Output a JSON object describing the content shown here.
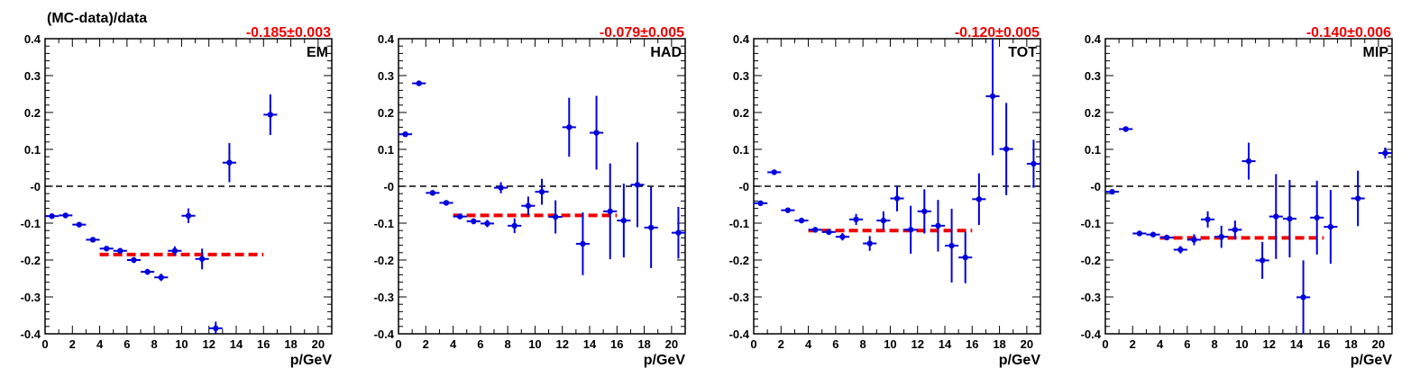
{
  "figure": {
    "ylabel": "(MC-data)/data"
  },
  "colors": {
    "points": "#0000dd",
    "fit": "#ee0000",
    "zero_line": "#000000"
  },
  "axes": {
    "x_ticks": [
      0,
      2,
      4,
      6,
      8,
      10,
      12,
      14,
      16,
      18,
      20
    ],
    "y_ticks": [
      0.4,
      0.3,
      0.2,
      0.1,
      0.0,
      -0.1,
      -0.2,
      -0.3,
      -0.4
    ],
    "y_tick_labels": [
      "0.4",
      "0.3",
      "0.2",
      "0.1",
      "-0",
      "-0.1",
      "-0.2",
      "-0.3",
      "-0.4"
    ]
  },
  "chart_data": [
    {
      "type": "scatter",
      "label": "EM",
      "fit_text": "-0.185±0.003",
      "fit": {
        "value": -0.185,
        "error": 0.003,
        "x_range": [
          4,
          16
        ]
      },
      "xlabel": "p/GeV",
      "ylabel": "(MC-data)/data",
      "xlim": [
        0,
        21
      ],
      "ylim": [
        -0.4,
        0.4
      ],
      "zero_line": true,
      "points": [
        {
          "x": 0.5,
          "y": -0.081,
          "yerr": 0.005
        },
        {
          "x": 1.5,
          "y": -0.079,
          "yerr": 0.005
        },
        {
          "x": 2.5,
          "y": -0.104,
          "yerr": 0.005
        },
        {
          "x": 3.5,
          "y": -0.145,
          "yerr": 0.005
        },
        {
          "x": 4.5,
          "y": -0.169,
          "yerr": 0.006
        },
        {
          "x": 5.5,
          "y": -0.175,
          "yerr": 0.007
        },
        {
          "x": 6.5,
          "y": -0.2,
          "yerr": 0.008
        },
        {
          "x": 7.5,
          "y": -0.232,
          "yerr": 0.008
        },
        {
          "x": 8.5,
          "y": -0.247,
          "yerr": 0.01
        },
        {
          "x": 9.5,
          "y": -0.175,
          "yerr": 0.012
        },
        {
          "x": 10.5,
          "y": -0.08,
          "yerr": 0.02
        },
        {
          "x": 11.5,
          "y": -0.197,
          "yerr": 0.028
        },
        {
          "x": 12.5,
          "y": -0.385,
          "yerr": 0.018
        },
        {
          "x": 13.5,
          "y": 0.064,
          "yerr": 0.053
        },
        {
          "x": 16.5,
          "y": 0.194,
          "yerr": 0.055
        }
      ]
    },
    {
      "type": "scatter",
      "label": "HAD",
      "fit_text": "-0.079±0.005",
      "fit": {
        "value": -0.079,
        "error": 0.005,
        "x_range": [
          4,
          16
        ]
      },
      "xlabel": "p/GeV",
      "xlim": [
        0,
        21
      ],
      "ylim": [
        -0.4,
        0.4
      ],
      "zero_line": true,
      "points": [
        {
          "x": 0.5,
          "y": 0.141,
          "yerr": 0.006
        },
        {
          "x": 1.5,
          "y": 0.279,
          "yerr": 0.005
        },
        {
          "x": 2.5,
          "y": -0.018,
          "yerr": 0.005
        },
        {
          "x": 3.5,
          "y": -0.045,
          "yerr": 0.005
        },
        {
          "x": 4.5,
          "y": -0.082,
          "yerr": 0.006
        },
        {
          "x": 5.5,
          "y": -0.095,
          "yerr": 0.008
        },
        {
          "x": 6.5,
          "y": -0.101,
          "yerr": 0.01
        },
        {
          "x": 7.5,
          "y": -0.004,
          "yerr": 0.015
        },
        {
          "x": 8.5,
          "y": -0.107,
          "yerr": 0.02
        },
        {
          "x": 9.5,
          "y": -0.053,
          "yerr": 0.025
        },
        {
          "x": 10.5,
          "y": -0.015,
          "yerr": 0.035
        },
        {
          "x": 11.5,
          "y": -0.083,
          "yerr": 0.045
        },
        {
          "x": 12.5,
          "y": 0.16,
          "yerr": 0.08
        },
        {
          "x": 13.5,
          "y": -0.156,
          "yerr": 0.085
        },
        {
          "x": 14.5,
          "y": 0.145,
          "yerr": 0.1
        },
        {
          "x": 15.5,
          "y": -0.068,
          "yerr": 0.13
        },
        {
          "x": 16.5,
          "y": -0.093,
          "yerr": 0.1
        },
        {
          "x": 17.5,
          "y": 0.004,
          "yerr": 0.115
        },
        {
          "x": 18.5,
          "y": -0.112,
          "yerr": 0.11
        },
        {
          "x": 20.5,
          "y": -0.126,
          "yerr": 0.07
        }
      ]
    },
    {
      "type": "scatter",
      "label": "TOT",
      "fit_text": "-0.120±0.005",
      "fit": {
        "value": -0.12,
        "error": 0.005,
        "x_range": [
          4,
          16
        ]
      },
      "xlabel": "p/GeV",
      "xlim": [
        0,
        21
      ],
      "ylim": [
        -0.4,
        0.4
      ],
      "zero_line": true,
      "points": [
        {
          "x": 0.5,
          "y": -0.046,
          "yerr": 0.006
        },
        {
          "x": 1.5,
          "y": 0.038,
          "yerr": 0.005
        },
        {
          "x": 2.5,
          "y": -0.065,
          "yerr": 0.005
        },
        {
          "x": 3.5,
          "y": -0.093,
          "yerr": 0.005
        },
        {
          "x": 4.5,
          "y": -0.118,
          "yerr": 0.006
        },
        {
          "x": 5.5,
          "y": -0.124,
          "yerr": 0.008
        },
        {
          "x": 6.5,
          "y": -0.137,
          "yerr": 0.01
        },
        {
          "x": 7.5,
          "y": -0.09,
          "yerr": 0.015
        },
        {
          "x": 8.5,
          "y": -0.155,
          "yerr": 0.02
        },
        {
          "x": 9.5,
          "y": -0.093,
          "yerr": 0.025
        },
        {
          "x": 10.5,
          "y": -0.033,
          "yerr": 0.035
        },
        {
          "x": 11.5,
          "y": -0.118,
          "yerr": 0.065
        },
        {
          "x": 12.5,
          "y": -0.068,
          "yerr": 0.06
        },
        {
          "x": 13.5,
          "y": -0.107,
          "yerr": 0.07
        },
        {
          "x": 14.5,
          "y": -0.161,
          "yerr": 0.1
        },
        {
          "x": 15.5,
          "y": -0.193,
          "yerr": 0.07
        },
        {
          "x": 16.5,
          "y": -0.035,
          "yerr": 0.07
        },
        {
          "x": 17.5,
          "y": 0.244,
          "yerr": 0.16
        },
        {
          "x": 18.5,
          "y": 0.101,
          "yerr": 0.125
        },
        {
          "x": 20.5,
          "y": 0.061,
          "yerr": 0.065
        }
      ]
    },
    {
      "type": "scatter",
      "label": "MIP",
      "fit_text": "-0.140±0.006",
      "fit": {
        "value": -0.14,
        "error": 0.006,
        "x_range": [
          4,
          16
        ]
      },
      "xlabel": "p/GeV",
      "xlim": [
        0,
        21
      ],
      "ylim": [
        -0.4,
        0.4
      ],
      "zero_line": true,
      "points": [
        {
          "x": 0.5,
          "y": -0.015,
          "yerr": 0.005
        },
        {
          "x": 1.5,
          "y": 0.155,
          "yerr": 0.005
        },
        {
          "x": 2.5,
          "y": -0.128,
          "yerr": 0.005
        },
        {
          "x": 3.5,
          "y": -0.131,
          "yerr": 0.005
        },
        {
          "x": 4.5,
          "y": -0.139,
          "yerr": 0.006
        },
        {
          "x": 5.5,
          "y": -0.172,
          "yerr": 0.01
        },
        {
          "x": 6.5,
          "y": -0.145,
          "yerr": 0.015
        },
        {
          "x": 7.5,
          "y": -0.09,
          "yerr": 0.022
        },
        {
          "x": 8.5,
          "y": -0.137,
          "yerr": 0.03
        },
        {
          "x": 9.5,
          "y": -0.118,
          "yerr": 0.025
        },
        {
          "x": 10.5,
          "y": 0.068,
          "yerr": 0.05
        },
        {
          "x": 11.5,
          "y": -0.201,
          "yerr": 0.05
        },
        {
          "x": 12.5,
          "y": -0.082,
          "yerr": 0.115
        },
        {
          "x": 13.5,
          "y": -0.088,
          "yerr": 0.105
        },
        {
          "x": 14.5,
          "y": -0.301,
          "yerr": 0.1
        },
        {
          "x": 15.5,
          "y": -0.085,
          "yerr": 0.1
        },
        {
          "x": 16.5,
          "y": -0.11,
          "yerr": 0.1
        },
        {
          "x": 18.5,
          "y": -0.033,
          "yerr": 0.075
        },
        {
          "x": 20.5,
          "y": 0.09,
          "yerr": 0.015
        }
      ]
    }
  ]
}
